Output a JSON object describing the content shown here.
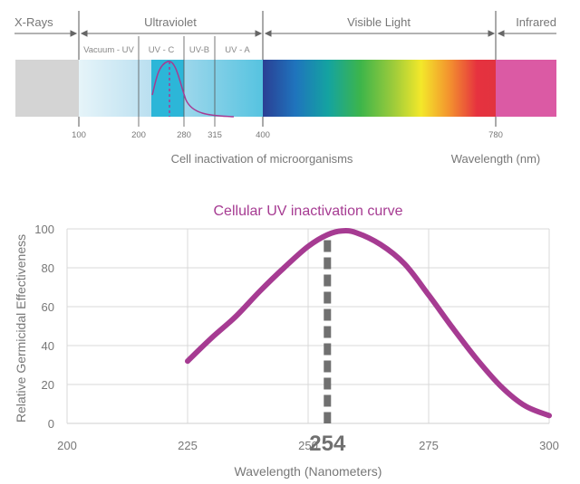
{
  "spectrum": {
    "regions": {
      "xrays": "X-Rays",
      "ultraviolet": "Ultraviolet",
      "visible": "Visible Light",
      "infrared": "Infrared"
    },
    "uv_bands": [
      "Vacuum - UV",
      "UV - C",
      "UV-B",
      "UV - A"
    ],
    "ticks": [
      "100",
      "200",
      "280",
      "315",
      "400",
      "780"
    ],
    "caption": "Cell inactivation of microorganisms",
    "wavelength_label": "Wavelength (nm)",
    "colors": {
      "xrays": "#d4d4d4",
      "uvc": "#2cb6d8",
      "infrared": "#db5aa4",
      "curve": "#a63b92"
    }
  },
  "chart_data": {
    "type": "line",
    "title": "Cellular UV inactivation curve",
    "xlabel": "Wavelength (Nanometers)",
    "ylabel": "Relative Germicidal Effectiveness",
    "xlim": [
      200,
      300
    ],
    "ylim": [
      0,
      100
    ],
    "xticks": [
      "200",
      "225",
      "250",
      "275",
      "300"
    ],
    "yticks": [
      "0",
      "20",
      "40",
      "60",
      "80",
      "100"
    ],
    "grid": true,
    "highlight": {
      "x": 254,
      "label": "254"
    },
    "series": [
      {
        "x": [
          225,
          230,
          235,
          240,
          245,
          250,
          254,
          257,
          260,
          265,
          270,
          275,
          280,
          285,
          290,
          295,
          300
        ],
        "values": [
          32,
          44,
          55,
          68,
          80,
          91,
          97,
          99,
          98,
          92,
          82,
          66,
          49,
          33,
          19,
          9,
          4
        ]
      }
    ]
  }
}
